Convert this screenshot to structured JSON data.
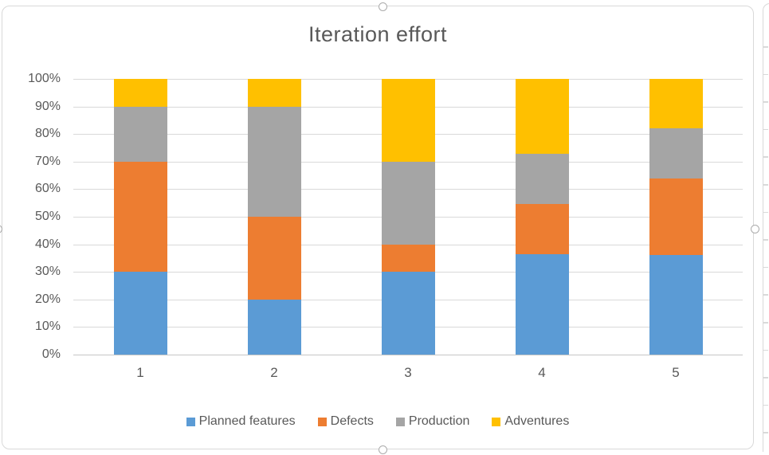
{
  "chart_data": {
    "type": "bar",
    "variant": "100%-stacked-column",
    "title": "Iteration effort",
    "categories": [
      "1",
      "2",
      "3",
      "4",
      "5"
    ],
    "series": [
      {
        "name": "Planned features",
        "color": "#5B9BD5",
        "values": [
          30,
          20,
          30,
          36.4,
          36
        ]
      },
      {
        "name": "Defects",
        "color": "#ED7D31",
        "values": [
          40,
          30,
          10,
          18.2,
          28
        ]
      },
      {
        "name": "Production",
        "color": "#A5A5A5",
        "values": [
          20,
          40,
          30,
          18.2,
          18
        ]
      },
      {
        "name": "Adventures",
        "color": "#FFC000",
        "values": [
          10,
          10,
          30,
          27.2,
          18
        ]
      }
    ],
    "xlabel": "",
    "ylabel": "",
    "ylim": [
      0,
      100
    ],
    "yticks": [
      0,
      10,
      20,
      30,
      40,
      50,
      60,
      70,
      80,
      90,
      100
    ],
    "ytick_labels": [
      "0%",
      "10%",
      "20%",
      "30%",
      "40%",
      "50%",
      "60%",
      "70%",
      "80%",
      "90%",
      "100%"
    ],
    "grid": "horizontal",
    "legend_position": "bottom"
  },
  "colors": {
    "text": "#595959",
    "gridline": "#D9D9D9",
    "axis_line": "#C6C6C6",
    "frame_border": "#D9D9D9",
    "handle_border": "#ABABAB",
    "background": "#ffffff"
  }
}
